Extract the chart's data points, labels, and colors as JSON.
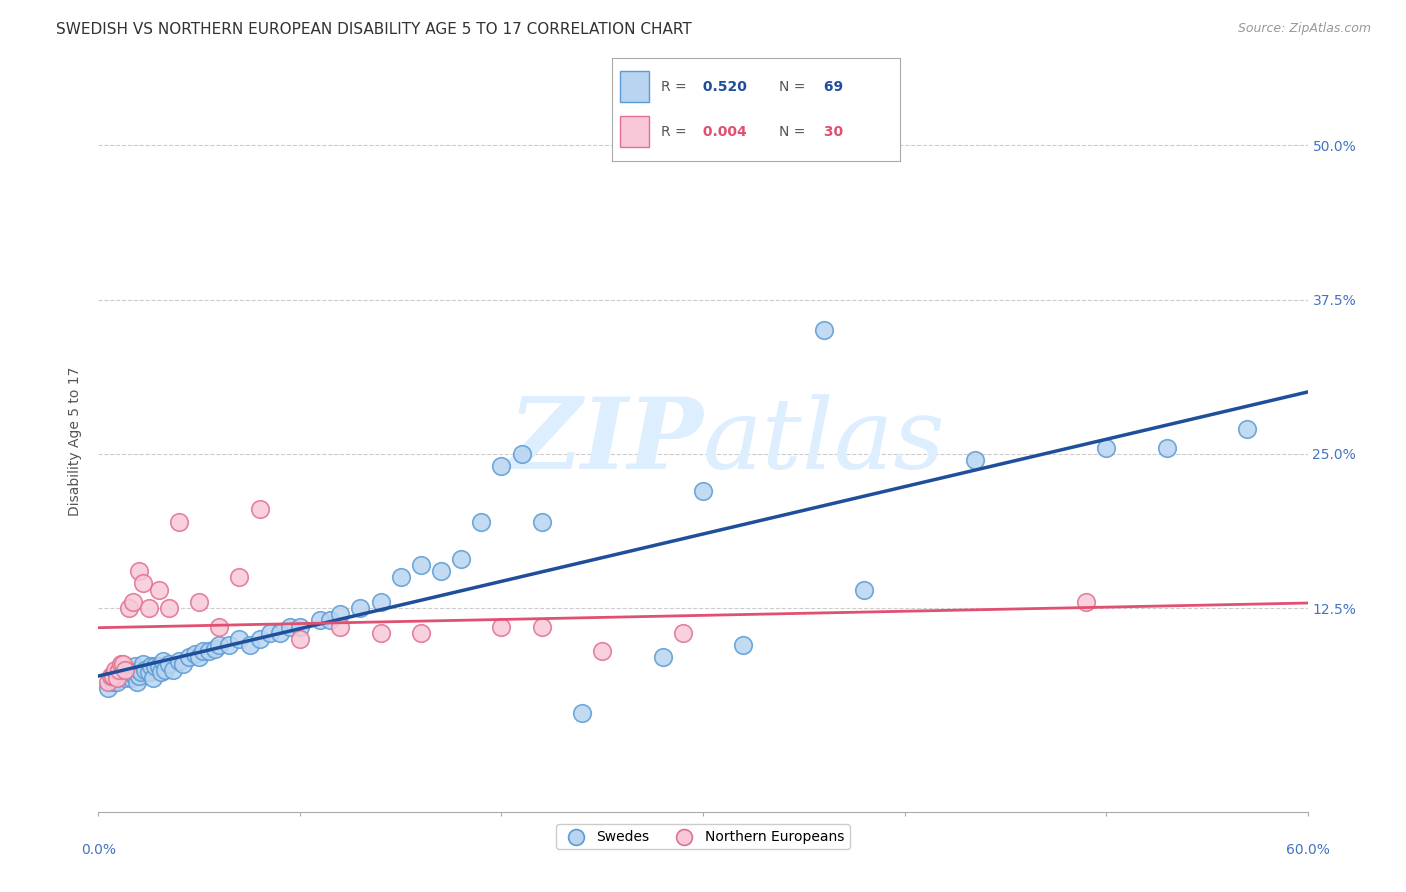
{
  "title": "SWEDISH VS NORTHERN EUROPEAN DISABILITY AGE 5 TO 17 CORRELATION CHART",
  "source": "Source: ZipAtlas.com",
  "ylabel": "Disability Age 5 to 17",
  "xlim": [
    0.0,
    0.6
  ],
  "ylim": [
    -0.04,
    0.56
  ],
  "ytick_values": [
    0.125,
    0.25,
    0.375,
    0.5
  ],
  "ytick_labels": [
    "12.5%",
    "25.0%",
    "37.5%",
    "50.0%"
  ],
  "xtick_values": [
    0.0,
    0.1,
    0.2,
    0.3,
    0.4,
    0.5,
    0.6
  ],
  "grid_color": "#cccccc",
  "background_color": "#ffffff",
  "title_color": "#333333",
  "title_fontsize": 11,
  "axis_label_color": "#4472c4",
  "watermark_zip": "ZIP",
  "watermark_atlas": "atlas",
  "watermark_color": "#ddeeff",
  "r_swedish": "0.520",
  "n_swedish": "69",
  "r_northern": "0.004",
  "n_northern": "30",
  "legend_label_1": "Swedes",
  "legend_label_2": "Northern Europeans",
  "scatter_swedish_color": "#b8d4f0",
  "scatter_swedish_edge": "#5b9bd5",
  "scatter_northern_color": "#f8c8d8",
  "scatter_northern_edge": "#e07090",
  "trendline_swedish_color": "#1f4e9b",
  "trendline_northern_color": "#e05070",
  "swedish_x": [
    0.005,
    0.007,
    0.008,
    0.009,
    0.01,
    0.01,
    0.011,
    0.012,
    0.013,
    0.015,
    0.016,
    0.017,
    0.018,
    0.019,
    0.02,
    0.02,
    0.021,
    0.022,
    0.023,
    0.025,
    0.026,
    0.027,
    0.028,
    0.03,
    0.031,
    0.032,
    0.033,
    0.035,
    0.037,
    0.04,
    0.042,
    0.045,
    0.048,
    0.05,
    0.052,
    0.055,
    0.058,
    0.06,
    0.065,
    0.07,
    0.075,
    0.08,
    0.085,
    0.09,
    0.095,
    0.1,
    0.11,
    0.115,
    0.12,
    0.13,
    0.14,
    0.15,
    0.16,
    0.17,
    0.18,
    0.19,
    0.2,
    0.21,
    0.22,
    0.24,
    0.28,
    0.3,
    0.32,
    0.36,
    0.38,
    0.435,
    0.5,
    0.53,
    0.57
  ],
  "swedish_y": [
    0.06,
    0.065,
    0.07,
    0.065,
    0.07,
    0.075,
    0.07,
    0.075,
    0.068,
    0.072,
    0.068,
    0.072,
    0.078,
    0.065,
    0.07,
    0.075,
    0.073,
    0.08,
    0.075,
    0.073,
    0.078,
    0.068,
    0.078,
    0.078,
    0.073,
    0.082,
    0.075,
    0.08,
    0.075,
    0.082,
    0.08,
    0.085,
    0.088,
    0.085,
    0.09,
    0.09,
    0.092,
    0.095,
    0.095,
    0.1,
    0.095,
    0.1,
    0.105,
    0.105,
    0.11,
    0.11,
    0.115,
    0.115,
    0.12,
    0.125,
    0.13,
    0.15,
    0.16,
    0.155,
    0.165,
    0.195,
    0.24,
    0.25,
    0.195,
    0.04,
    0.085,
    0.22,
    0.095,
    0.35,
    0.14,
    0.245,
    0.255,
    0.255,
    0.27
  ],
  "northern_x": [
    0.005,
    0.006,
    0.007,
    0.008,
    0.009,
    0.01,
    0.011,
    0.012,
    0.013,
    0.015,
    0.017,
    0.02,
    0.022,
    0.025,
    0.03,
    0.035,
    0.04,
    0.05,
    0.06,
    0.07,
    0.08,
    0.1,
    0.12,
    0.14,
    0.16,
    0.2,
    0.22,
    0.25,
    0.29,
    0.49
  ],
  "northern_y": [
    0.065,
    0.07,
    0.07,
    0.075,
    0.068,
    0.075,
    0.08,
    0.08,
    0.075,
    0.125,
    0.13,
    0.155,
    0.145,
    0.125,
    0.14,
    0.125,
    0.195,
    0.13,
    0.11,
    0.15,
    0.205,
    0.1,
    0.11,
    0.105,
    0.105,
    0.11,
    0.11,
    0.09,
    0.105,
    0.13
  ]
}
